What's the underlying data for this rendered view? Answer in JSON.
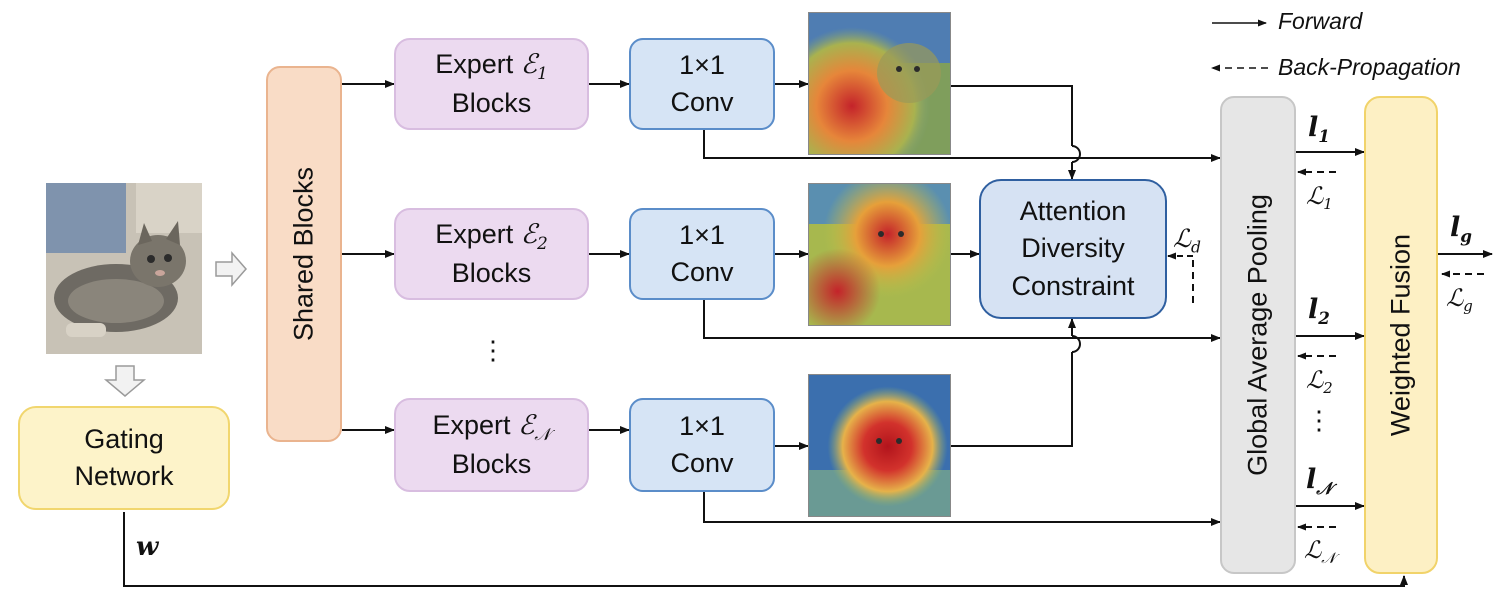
{
  "legend": {
    "forward": "Forward",
    "backprop": "Back-Propagation"
  },
  "shared_blocks": "Shared Blocks",
  "gating": {
    "line1": "Gating",
    "line2": "Network",
    "output": "w"
  },
  "experts": [
    {
      "prefix": "Expert ",
      "symbol": "ℰ",
      "sub": "1",
      "line2": "Blocks"
    },
    {
      "prefix": "Expert ",
      "symbol": "ℰ",
      "sub": "2",
      "line2": "Blocks"
    },
    {
      "prefix": "Expert ",
      "symbol": "ℰ",
      "sub": "𝒩",
      "line2": "Blocks"
    }
  ],
  "conv": {
    "line1": "1×1",
    "line2": "Conv"
  },
  "attention": {
    "line1": "Attention",
    "line2": "Diversity",
    "line3": "Constraint",
    "loss": "ℒ",
    "loss_sub": "d"
  },
  "gap_label": "Global Average Pooling",
  "fusion_label": "Weighted Fusion",
  "logits": [
    {
      "symbol": "l",
      "sub": "1"
    },
    {
      "symbol": "l",
      "sub": "2"
    },
    {
      "symbol": "l",
      "sub": "𝒩"
    }
  ],
  "losses": [
    {
      "symbol": "ℒ",
      "sub": "1"
    },
    {
      "symbol": "ℒ",
      "sub": "2"
    },
    {
      "symbol": "ℒ",
      "sub": "𝒩"
    }
  ],
  "global_logit": {
    "symbol": "l",
    "sub": "g"
  },
  "global_loss": {
    "symbol": "ℒ",
    "sub": "g"
  },
  "ellipsis": "⋮",
  "colors": {
    "expert": "#ecdaf0",
    "conv": "#d6e4f5",
    "shared": "#f9dcc6",
    "gating": "#fdf3c9",
    "attention": "#d6e2f3",
    "gap": "#e6e6e6",
    "fusion": "#fdf0c4"
  }
}
